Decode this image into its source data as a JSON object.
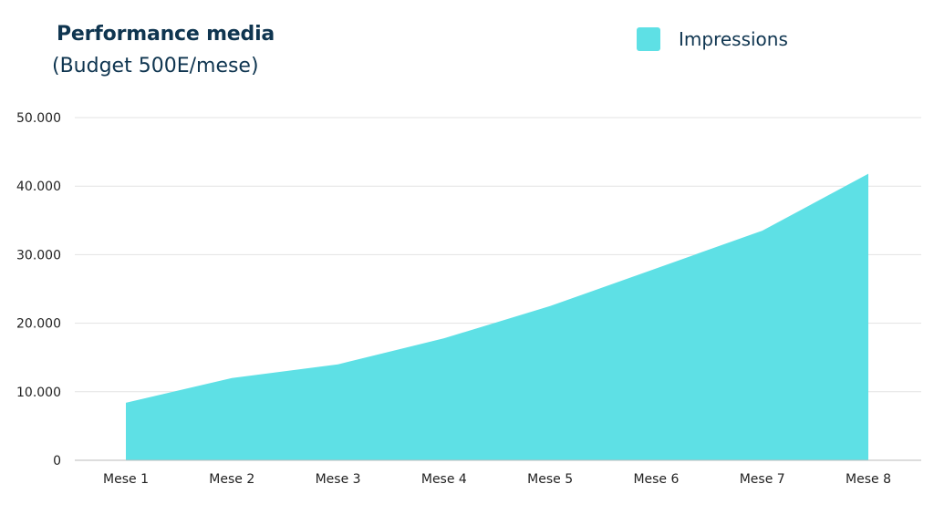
{
  "chart_data": {
    "type": "area",
    "title": "Performance media",
    "subtitle": "(Budget 500E/mese)",
    "categories": [
      "Mese 1",
      "Mese 2",
      "Mese 3",
      "Mese 4",
      "Mese 5",
      "Mese 6",
      "Mese 7",
      "Mese 8"
    ],
    "series": [
      {
        "name": "Impressions",
        "values": [
          8400,
          12000,
          14000,
          17800,
          22500,
          28000,
          33500,
          41800
        ]
      }
    ],
    "ylim": [
      0,
      50000
    ],
    "yticks": [
      0,
      10000,
      20000,
      30000,
      40000,
      50000
    ],
    "ytick_labels": [
      "0",
      "10.000",
      "20.000",
      "30.000",
      "40.000",
      "50.000"
    ],
    "xlabel": "",
    "ylabel": "",
    "grid": true,
    "legend_position": "top-right",
    "colors": {
      "fill": "#5ee0e5",
      "title": "#0f3550",
      "grid": "#e3e3e3",
      "axis": "#bbbbbb"
    }
  }
}
